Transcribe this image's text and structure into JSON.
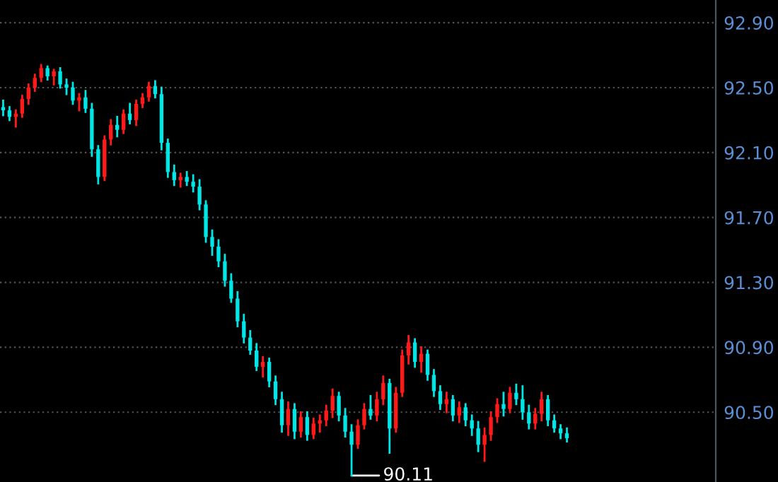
{
  "chart_data": {
    "type": "candlestick",
    "categories": [
      null,
      null,
      null,
      null,
      null,
      null,
      null,
      null,
      null,
      null,
      null,
      null,
      null,
      null,
      null,
      null,
      null,
      null,
      null,
      null,
      null,
      null,
      null,
      null,
      null,
      null,
      null,
      null,
      null,
      null,
      null,
      null,
      null,
      null,
      null,
      null,
      null,
      null,
      null,
      null,
      null,
      null,
      null,
      null,
      null,
      null,
      null,
      null,
      null,
      null,
      null,
      null,
      null,
      null,
      null,
      null,
      null,
      null,
      null,
      null,
      null,
      null,
      null,
      null,
      null,
      null,
      null,
      null,
      null,
      null,
      null,
      null,
      null,
      null,
      null,
      null,
      null,
      null,
      null,
      null,
      null,
      null,
      null,
      null,
      null,
      null,
      null,
      null,
      null,
      null,
      null,
      null,
      null,
      null,
      null,
      null,
      null,
      null,
      null,
      null,
      null,
      null,
      null,
      null,
      null,
      null,
      null,
      null,
      null,
      null,
      null,
      null,
      null
    ],
    "ohlc": [
      [
        92.38,
        92.42,
        92.33,
        92.36
      ],
      [
        92.36,
        92.38,
        92.3,
        92.32
      ],
      [
        92.32,
        92.36,
        92.26,
        92.34
      ],
      [
        92.34,
        92.45,
        92.32,
        92.43
      ],
      [
        92.43,
        92.52,
        92.4,
        92.5
      ],
      [
        92.5,
        92.58,
        92.48,
        92.56
      ],
      [
        92.56,
        92.64,
        92.54,
        92.62
      ],
      [
        92.62,
        92.63,
        92.55,
        92.57
      ],
      [
        92.57,
        92.61,
        92.52,
        92.6
      ],
      [
        92.6,
        92.62,
        92.5,
        92.52
      ],
      [
        92.52,
        92.55,
        92.46,
        92.5
      ],
      [
        92.5,
        92.53,
        92.4,
        92.42
      ],
      [
        92.42,
        92.46,
        92.36,
        92.44
      ],
      [
        92.44,
        92.48,
        92.35,
        92.37
      ],
      [
        92.37,
        92.4,
        92.08,
        92.12
      ],
      [
        92.12,
        92.14,
        91.91,
        91.95
      ],
      [
        91.95,
        92.2,
        91.93,
        92.18
      ],
      [
        92.18,
        92.3,
        92.15,
        92.27
      ],
      [
        92.27,
        92.32,
        92.2,
        92.24
      ],
      [
        92.24,
        92.36,
        92.22,
        92.34
      ],
      [
        92.34,
        92.4,
        92.28,
        92.3
      ],
      [
        92.3,
        92.42,
        92.27,
        92.4
      ],
      [
        92.4,
        92.46,
        92.38,
        92.44
      ],
      [
        92.44,
        92.53,
        92.42,
        92.51
      ],
      [
        92.51,
        92.54,
        92.44,
        92.46
      ],
      [
        92.46,
        92.5,
        92.12,
        92.16
      ],
      [
        92.16,
        92.18,
        91.95,
        91.98
      ],
      [
        91.98,
        92.02,
        91.9,
        91.93
      ],
      [
        91.93,
        91.97,
        91.89,
        91.95
      ],
      [
        91.95,
        91.98,
        91.9,
        91.92
      ],
      [
        91.92,
        91.96,
        91.86,
        91.89
      ],
      [
        91.89,
        91.93,
        91.75,
        91.78
      ],
      [
        91.78,
        91.8,
        91.55,
        91.58
      ],
      [
        91.58,
        91.62,
        91.47,
        91.52
      ],
      [
        91.52,
        91.56,
        91.4,
        91.43
      ],
      [
        91.43,
        91.47,
        91.28,
        91.31
      ],
      [
        91.31,
        91.35,
        91.18,
        91.2
      ],
      [
        91.2,
        91.24,
        91.03,
        91.06
      ],
      [
        91.06,
        91.1,
        90.93,
        90.96
      ],
      [
        90.96,
        91.0,
        90.86,
        90.88
      ],
      [
        90.88,
        90.92,
        90.76,
        90.78
      ],
      [
        90.78,
        90.84,
        90.72,
        90.81
      ],
      [
        90.81,
        90.83,
        90.66,
        90.69
      ],
      [
        90.69,
        90.72,
        90.55,
        90.58
      ],
      [
        90.58,
        90.62,
        90.38,
        90.42
      ],
      [
        90.42,
        90.56,
        90.36,
        90.52
      ],
      [
        90.52,
        90.55,
        90.34,
        90.38
      ],
      [
        90.38,
        90.5,
        90.35,
        90.47
      ],
      [
        90.47,
        90.5,
        90.33,
        90.36
      ],
      [
        90.36,
        90.46,
        90.34,
        90.43
      ],
      [
        90.43,
        90.48,
        90.38,
        90.45
      ],
      [
        90.45,
        90.54,
        90.42,
        90.51
      ],
      [
        90.51,
        90.64,
        90.47,
        90.6
      ],
      [
        90.6,
        90.62,
        90.45,
        90.48
      ],
      [
        90.48,
        90.52,
        90.35,
        90.38
      ],
      [
        90.38,
        90.42,
        90.11,
        90.3
      ],
      [
        90.3,
        90.45,
        90.28,
        90.42
      ],
      [
        90.42,
        90.55,
        90.4,
        90.52
      ],
      [
        90.52,
        90.6,
        90.46,
        90.48
      ],
      [
        90.48,
        90.62,
        90.45,
        90.58
      ],
      [
        90.58,
        90.72,
        90.55,
        90.68
      ],
      [
        90.68,
        90.7,
        90.25,
        90.4
      ],
      [
        90.4,
        90.65,
        90.38,
        90.62
      ],
      [
        90.62,
        90.88,
        90.6,
        90.85
      ],
      [
        90.85,
        90.97,
        90.8,
        90.93
      ],
      [
        90.93,
        90.95,
        90.78,
        90.81
      ],
      [
        90.81,
        90.9,
        90.75,
        90.86
      ],
      [
        90.86,
        90.88,
        90.7,
        90.73
      ],
      [
        90.73,
        90.76,
        90.6,
        90.63
      ],
      [
        90.63,
        90.66,
        90.52,
        90.55
      ],
      [
        90.55,
        90.62,
        90.5,
        90.58
      ],
      [
        90.58,
        90.6,
        90.45,
        90.48
      ],
      [
        90.48,
        90.56,
        90.44,
        90.53
      ],
      [
        90.53,
        90.55,
        90.42,
        90.45
      ],
      [
        90.45,
        90.48,
        90.36,
        90.4
      ],
      [
        90.4,
        90.44,
        90.26,
        90.3
      ],
      [
        90.3,
        90.4,
        90.2,
        90.36
      ],
      [
        90.36,
        90.5,
        90.33,
        90.47
      ],
      [
        90.47,
        90.58,
        90.44,
        90.55
      ],
      [
        90.55,
        90.62,
        90.48,
        90.52
      ],
      [
        90.52,
        90.65,
        90.5,
        90.62
      ],
      [
        90.62,
        90.67,
        90.55,
        90.58
      ],
      [
        90.58,
        90.66,
        90.46,
        90.5
      ],
      [
        90.5,
        90.54,
        90.4,
        90.43
      ],
      [
        90.43,
        90.52,
        90.4,
        90.49
      ],
      [
        90.49,
        90.62,
        90.45,
        90.58
      ],
      [
        90.58,
        90.6,
        90.42,
        90.45
      ],
      [
        90.45,
        90.48,
        90.38,
        90.4
      ],
      [
        90.4,
        90.42,
        90.34,
        90.37
      ],
      [
        90.37,
        90.4,
        90.32,
        90.34
      ],
      null,
      null,
      null,
      null,
      null,
      null,
      null,
      null,
      null,
      null,
      null,
      null,
      null,
      null,
      null,
      null,
      null,
      null,
      null,
      null,
      null,
      null,
      null
    ],
    "colors": [
      "#00e5e5",
      "#00e5e5",
      "#ff1a1a",
      "#ff1a1a",
      "#ff1a1a",
      "#ff1a1a",
      "#ff1a1a",
      "#00e5e5",
      "#ff1a1a",
      "#00e5e5",
      "#00e5e5",
      "#00e5e5",
      "#ff1a1a",
      "#00e5e5",
      "#00e5e5",
      "#00e5e5",
      "#ff1a1a",
      "#ff1a1a",
      "#00e5e5",
      "#ff1a1a",
      "#00e5e5",
      "#ff1a1a",
      "#ff1a1a",
      "#ff1a1a",
      "#00e5e5",
      "#00e5e5",
      "#00e5e5",
      "#00e5e5",
      "#ff1a1a",
      "#00e5e5",
      "#00e5e5",
      "#00e5e5",
      "#00e5e5",
      "#00e5e5",
      "#00e5e5",
      "#00e5e5",
      "#00e5e5",
      "#00e5e5",
      "#00e5e5",
      "#00e5e5",
      "#00e5e5",
      "#ff1a1a",
      "#00e5e5",
      "#00e5e5",
      "#00e5e5",
      "#ff1a1a",
      "#00e5e5",
      "#ff1a1a",
      "#00e5e5",
      "#ff1a1a",
      "#ff1a1a",
      "#ff1a1a",
      "#ff1a1a",
      "#00e5e5",
      "#00e5e5",
      "#00e5e5",
      "#ff1a1a",
      "#ff1a1a",
      "#00e5e5",
      "#ff1a1a",
      "#ff1a1a",
      "#00e5e5",
      "#ff1a1a",
      "#ff1a1a",
      "#ff1a1a",
      "#00e5e5",
      "#ff1a1a",
      "#00e5e5",
      "#00e5e5",
      "#00e5e5",
      "#ff1a1a",
      "#00e5e5",
      "#ff1a1a",
      "#00e5e5",
      "#00e5e5",
      "#00e5e5",
      "#ff1a1a",
      "#ff1a1a",
      "#ff1a1a",
      "#00e5e5",
      "#ff1a1a",
      "#00e5e5",
      "#00e5e5",
      "#00e5e5",
      "#ff1a1a",
      "#ff1a1a",
      "#00e5e5",
      "#00e5e5",
      "#00e5e5",
      "#00e5e5",
      null,
      null,
      null,
      null,
      null,
      null,
      null,
      null,
      null,
      null,
      null,
      null,
      null,
      null,
      null,
      null,
      null,
      null,
      null,
      null,
      null,
      null,
      null
    ],
    "ylim": [
      90.07,
      93.04
    ],
    "yticks": [
      {
        "value": 90.5,
        "label": "90.50"
      },
      {
        "value": 90.9,
        "label": "90.90"
      },
      {
        "value": 91.3,
        "label": "91.30"
      },
      {
        "value": 91.7,
        "label": "91.70"
      },
      {
        "value": 92.1,
        "label": "92.10"
      },
      {
        "value": 92.5,
        "label": "92.50"
      },
      {
        "value": 92.9,
        "label": "92.90"
      }
    ],
    "annotations": [
      "90.11"
    ],
    "grid": "y",
    "tick_labels": "y"
  }
}
